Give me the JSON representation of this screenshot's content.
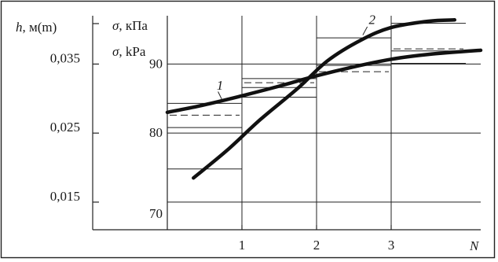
{
  "chart_data": {
    "type": "line",
    "left_axis": {
      "label_symbol": "h",
      "label_rest": ", м(m)",
      "ticks": [
        {
          "value": 0.015,
          "label": "0,015"
        },
        {
          "value": 0.025,
          "label": "0,025"
        },
        {
          "value": 0.035,
          "label": "0,035"
        }
      ]
    },
    "inner_axis": {
      "label_1_symbol": "σ",
      "label_1_rest": ", кПа",
      "label_2_symbol": "σ",
      "label_2_rest": ", kPa",
      "ylim": [
        66,
        97
      ],
      "ticks": [
        {
          "value": 70,
          "label": "70"
        },
        {
          "value": 80,
          "label": "80"
        },
        {
          "value": 90,
          "label": "90"
        }
      ]
    },
    "x_axis": {
      "label": "N",
      "xlim": [
        -1,
        4.2
      ],
      "ticks": [
        {
          "value": 1,
          "label": "1"
        },
        {
          "value": 2,
          "label": "2"
        },
        {
          "value": 3,
          "label": "3"
        }
      ]
    },
    "gridlines_y": [
      70,
      80,
      90
    ],
    "gridlines_x": [
      1,
      2,
      3
    ],
    "step_levels": [
      {
        "x_from": 0,
        "x_to": 1,
        "solid": [
          74.8,
          80.8,
          84.3
        ],
        "dashed": [
          82.6
        ]
      },
      {
        "x_from": 1,
        "x_to": 2,
        "solid": [
          85.2,
          86.6,
          87.9
        ],
        "dashed": [
          87.3
        ]
      },
      {
        "x_from": 2,
        "x_to": 3,
        "solid": [
          89.8,
          93.8
        ],
        "dashed": [
          88.9
        ]
      },
      {
        "x_from": 3,
        "x_to": 4,
        "solid": [
          90.1,
          91.9,
          95.9
        ],
        "dashed": [
          92.2
        ]
      }
    ],
    "series": [
      {
        "name": "1",
        "x": [
          0,
          0.5,
          1,
          1.5,
          2,
          2.5,
          3,
          3.5,
          4.2
        ],
        "y": [
          83.0,
          84.1,
          85.4,
          86.8,
          88.3,
          89.6,
          90.7,
          91.4,
          92.0
        ]
      },
      {
        "name": "2",
        "x": [
          0.35,
          0.8,
          1.25,
          1.75,
          2.15,
          2.6,
          3.0,
          3.5,
          3.85
        ],
        "y": [
          73.5,
          77.5,
          82.0,
          86.5,
          90.5,
          93.5,
          95.3,
          96.2,
          96.4
        ]
      }
    ]
  }
}
